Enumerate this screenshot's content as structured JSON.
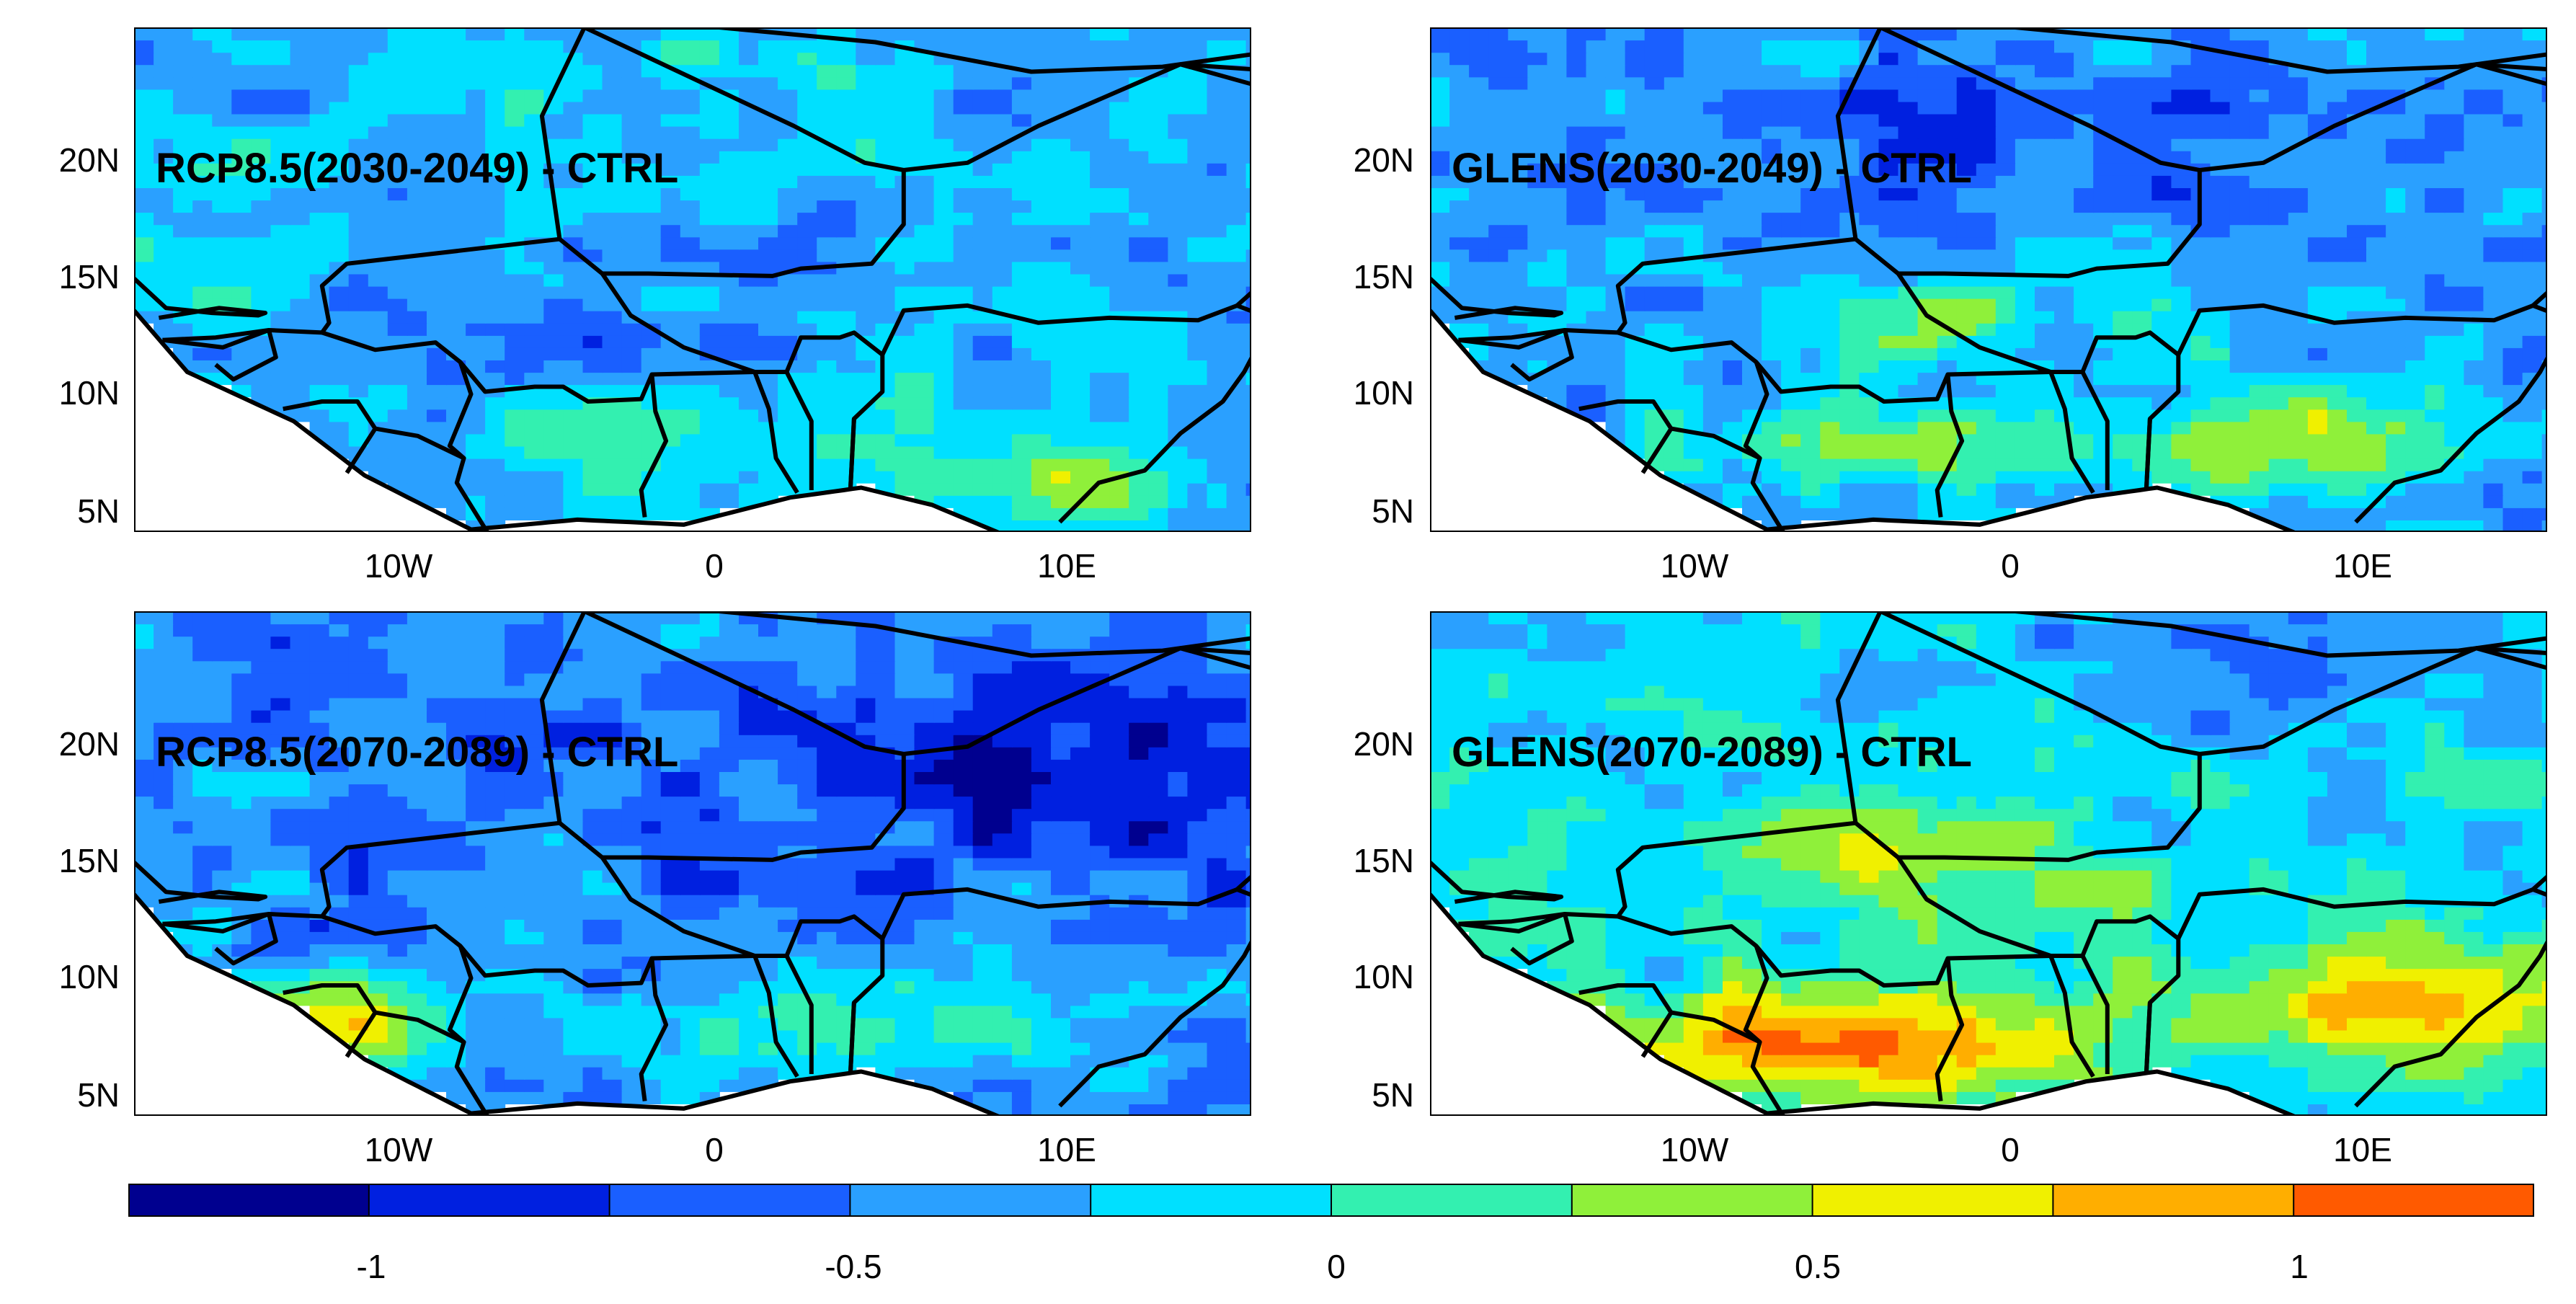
{
  "panels": [
    {
      "id": "p1",
      "title": "RCP8.5(2030-2049) - CTRL",
      "pattern": "rcp_near"
    },
    {
      "id": "p2",
      "title": "GLENS(2030-2049) - CTRL",
      "pattern": "glens_near"
    },
    {
      "id": "p3",
      "title": "RCP8.5(2070-2089) - CTRL",
      "pattern": "rcp_far"
    },
    {
      "id": "p4",
      "title": "GLENS(2070-2089) - CTRL",
      "pattern": "glens_far"
    }
  ],
  "axes": {
    "lat_ticks": [
      "20N",
      "15N",
      "10N",
      "5N"
    ],
    "lon_ticks": [
      "10W",
      "0",
      "10E"
    ],
    "lat_range": [
      4.5,
      25
    ],
    "lon_range": [
      -17.5,
      14
    ]
  },
  "colorbar": {
    "range": [
      -1.25,
      1.25
    ],
    "ticks": [
      "-1",
      "-0.5",
      "0",
      "0.5",
      "1"
    ],
    "tick_values": [
      -1,
      -0.5,
      0,
      0.5,
      1
    ],
    "colors": [
      "#00008f",
      "#0020e0",
      "#1a5fff",
      "#2aa0ff",
      "#00e0ff",
      "#33f0b0",
      "#8ff03a",
      "#f0f000",
      "#ffae00",
      "#ff5a00"
    ]
  },
  "colors": {
    "land_base": "#2aa0ff",
    "ocean": "#ffffff",
    "border": "#000000"
  }
}
